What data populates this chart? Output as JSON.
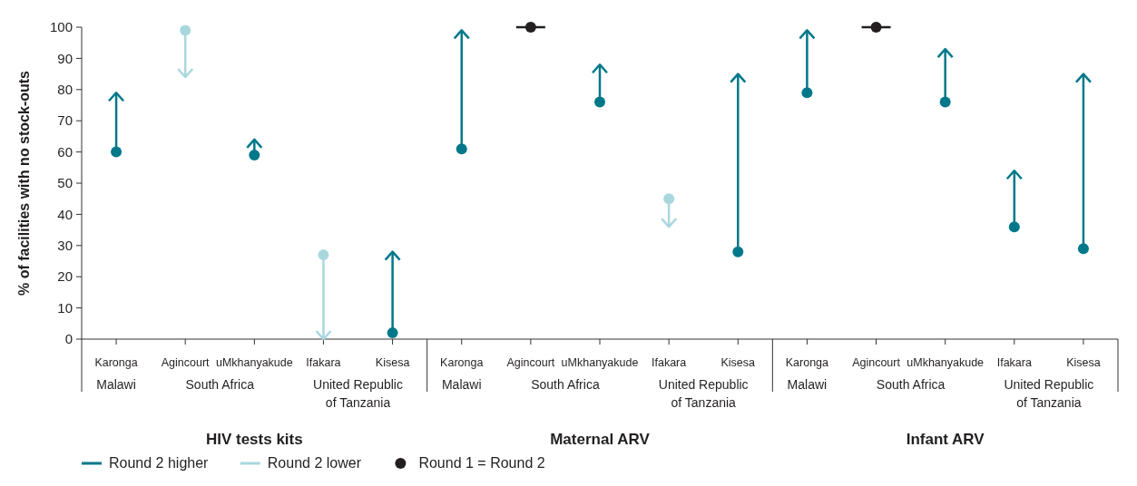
{
  "chart_data": {
    "type": "bar",
    "ylabel": "% of facilities with no stock-outs",
    "categories": [
      "Karonga",
      "Agincourt",
      "uMkhanyakude",
      "Ifakara",
      "Kisesa",
      "Karonga",
      "Agincourt",
      "uMkhanyakude",
      "Ifakara",
      "Kisesa",
      "Karonga",
      "Agincourt",
      "uMkhanyakude",
      "Ifakara",
      "Kisesa"
    ],
    "series": [
      {
        "name": "Round 2 higher",
        "color": "#00788a",
        "base": [
          60,
          null,
          59,
          null,
          2,
          61,
          null,
          76,
          null,
          28,
          79,
          null,
          76,
          36,
          29
        ],
        "values": [
          19,
          null,
          5,
          null,
          26,
          38,
          null,
          12,
          null,
          57,
          20,
          null,
          17,
          18,
          56
        ]
      },
      {
        "name": "Round 2 lower",
        "color": "#a8d8de",
        "base": [
          null,
          99,
          null,
          27,
          null,
          null,
          null,
          null,
          45,
          null,
          null,
          null,
          null,
          null,
          null
        ],
        "values": [
          null,
          -15,
          null,
          -27,
          null,
          null,
          null,
          null,
          -9,
          null,
          null,
          null,
          null,
          null,
          null
        ]
      },
      {
        "name": "Round 1 = Round 2",
        "type": "scatter",
        "color": "#231f20",
        "values": [
          null,
          null,
          null,
          null,
          null,
          null,
          100,
          null,
          null,
          null,
          null,
          100,
          null,
          null,
          null
        ]
      }
    ],
    "annotations": [
      "Malawi",
      "South Africa",
      "United Republic of Tanzania",
      "HIV tests kits",
      "Malawi",
      "South Africa",
      "United Republic of Tanzania",
      "Maternal ARV",
      "Malawi",
      "South Africa",
      "United Republic of Tanzania",
      "Infant ARV"
    ],
    "ylim": [
      0,
      100
    ],
    "yticks": [
      0,
      10,
      20,
      30,
      40,
      50,
      60,
      70,
      80,
      90,
      100
    ],
    "grid": false,
    "legend": "bottom left"
  }
}
